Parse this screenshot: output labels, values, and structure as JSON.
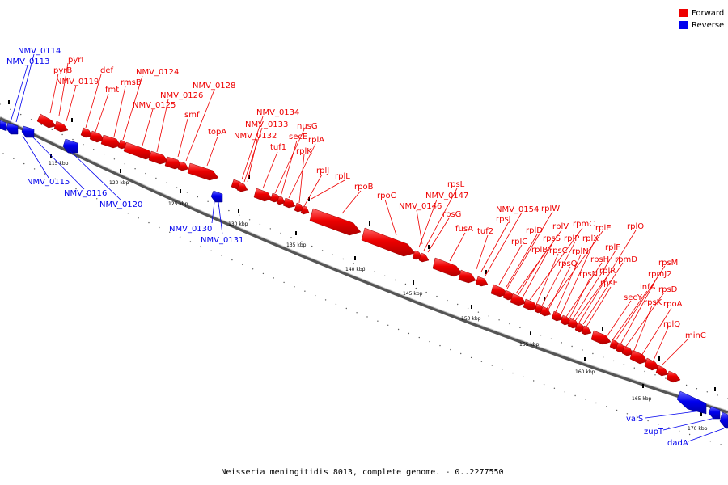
{
  "caption": "Neisseria meningitidis 8013, complete genome. - 0..2277550",
  "legend": {
    "forward_label": "Forward",
    "reverse_label": "Reverse",
    "forward_color": "#ee0000",
    "reverse_color": "#0000ee"
  },
  "ticks": [
    "115 kbp",
    "120 kbp",
    "125 kbp",
    "130 kbp",
    "135 kbp",
    "140 kbp",
    "145 kbp",
    "150 kbp",
    "155 kbp",
    "160 kbp",
    "165 kbp",
    "170 kbp"
  ],
  "forward_genes": [
    "pyrI",
    "pyrB",
    "NMV_0119",
    "def",
    "fmt",
    "rmsB",
    "NMV_0124",
    "NMV_0125",
    "NMV_0126",
    "smf",
    "NMV_0128",
    "topA",
    "NMV_0134",
    "NMV_0133",
    "NMV_0132",
    "tuf1",
    "nusG",
    "secE",
    "rplA",
    "rplK",
    "rplJ",
    "rplL",
    "rpoB",
    "rpoC",
    "rpsL",
    "NMV_0147",
    "NMV_0146",
    "rpsG",
    "fusA",
    "tuf2",
    "NMV_0154",
    "rpsJ",
    "rplW",
    "rplD",
    "rplC",
    "rplV",
    "rpmC",
    "rplB",
    "rpsS",
    "rplP",
    "rplE",
    "rpsC",
    "rplN",
    "rplX",
    "rpsQ",
    "rplF",
    "rpsH",
    "rplO",
    "rpsN",
    "rplR",
    "rpmD",
    "rpsE",
    "rpsM",
    "secY",
    "rpmJ2",
    "infA",
    "rpsD",
    "rpsK",
    "rpoA",
    "rplQ",
    "minC"
  ],
  "reverse_genes": [
    "NMV_0114",
    "NMV_0113",
    "NMV_0115",
    "NMV_0116",
    "NMV_0120",
    "NMV_0130",
    "NMV_0131",
    "valS",
    "zupT",
    "dadA"
  ]
}
